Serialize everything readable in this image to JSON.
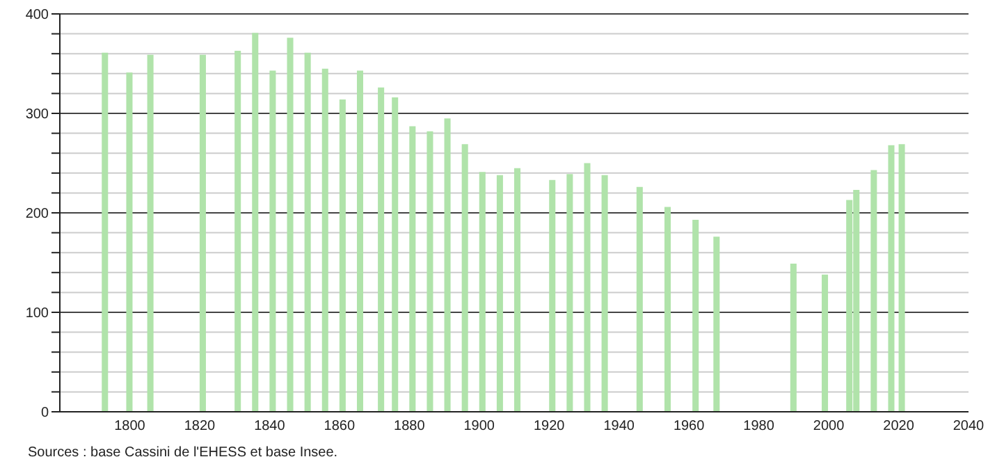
{
  "chart_data": {
    "type": "bar",
    "x": [
      1793,
      1800,
      1806,
      1821,
      1831,
      1836,
      1841,
      1846,
      1851,
      1856,
      1861,
      1866,
      1872,
      1876,
      1881,
      1886,
      1891,
      1896,
      1901,
      1906,
      1911,
      1921,
      1926,
      1931,
      1936,
      1946,
      1954,
      1962,
      1968,
      1990,
      1999,
      2006,
      2008,
      2013,
      2018,
      2021
    ],
    "values": [
      361,
      341,
      359,
      359,
      363,
      381,
      343,
      376,
      361,
      345,
      314,
      343,
      326,
      316,
      287,
      282,
      295,
      269,
      241,
      238,
      245,
      233,
      239,
      250,
      238,
      226,
      206,
      193,
      176,
      149,
      138,
      213,
      223,
      243,
      268,
      269
    ],
    "color": "#b0e3aa",
    "xlim": [
      1780,
      2040
    ],
    "xticks": [
      1800,
      1820,
      1840,
      1860,
      1880,
      1900,
      1920,
      1940,
      1960,
      1980,
      2000,
      2020,
      2040
    ],
    "ylim": [
      0,
      400
    ],
    "yticks": [
      0,
      {
        "value": 20,
        "label": null
      },
      {
        "value": 40,
        "label": null
      },
      {
        "value": 60,
        "label": null
      },
      {
        "value": 80,
        "label": null
      },
      100,
      {
        "value": 120,
        "label": null
      },
      {
        "value": 140,
        "label": null
      },
      {
        "value": 160,
        "label": null
      },
      {
        "value": 180,
        "label": null
      },
      200,
      {
        "value": 220,
        "label": null
      },
      {
        "value": 240,
        "label": null
      },
      {
        "value": 260,
        "label": null
      },
      {
        "value": 280,
        "label": null
      },
      300,
      {
        "value": 320,
        "label": null
      },
      {
        "value": 340,
        "label": null
      },
      {
        "value": 360,
        "label": null
      },
      {
        "value": 380,
        "label": null
      },
      400
    ],
    "grid": "y",
    "annotations": [
      "Sources : base Cassini de l'EHESS et base Insee."
    ]
  }
}
